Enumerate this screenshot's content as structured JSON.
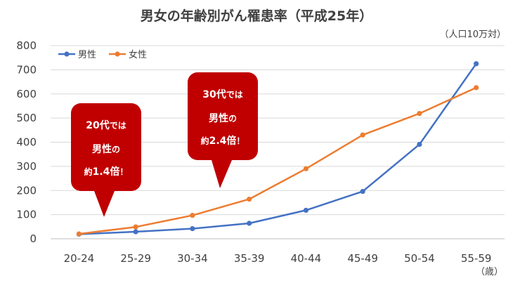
{
  "chart_data": {
    "type": "line",
    "title": "男女の年齢別がん罹患率（平成25年）",
    "unit_label": "（人口10万対）",
    "x_unit_label": "（歳）",
    "categories": [
      "20-24",
      "25-29",
      "30-34",
      "35-39",
      "40-44",
      "45-49",
      "50-54",
      "55-59"
    ],
    "ylim": [
      0,
      800
    ],
    "yticks": [
      0,
      100,
      200,
      300,
      400,
      500,
      600,
      700,
      800
    ],
    "grid": true,
    "legend_position": "top-left",
    "series": [
      {
        "name": "男性",
        "color": "#4472C4",
        "values": [
          19,
          29,
          42,
          64,
          118,
          196,
          391,
          725
        ]
      },
      {
        "name": "女性",
        "color": "#ED7D31",
        "values": [
          20,
          49,
          97,
          164,
          290,
          430,
          519,
          626
        ]
      }
    ],
    "callouts": [
      {
        "line1_num": "20代",
        "line1_rest": "では",
        "line2_main": "男性",
        "line2_rest": "の",
        "line3_pre": "約",
        "line3_num": "1.4倍",
        "line3_post": "！",
        "color": "#C00000"
      },
      {
        "line1_num": "30代",
        "line1_rest": "では",
        "line2_main": "男性",
        "line2_rest": "の",
        "line3_pre": "約",
        "line3_num": "2.4倍",
        "line3_post": "！",
        "color": "#C00000"
      }
    ]
  }
}
